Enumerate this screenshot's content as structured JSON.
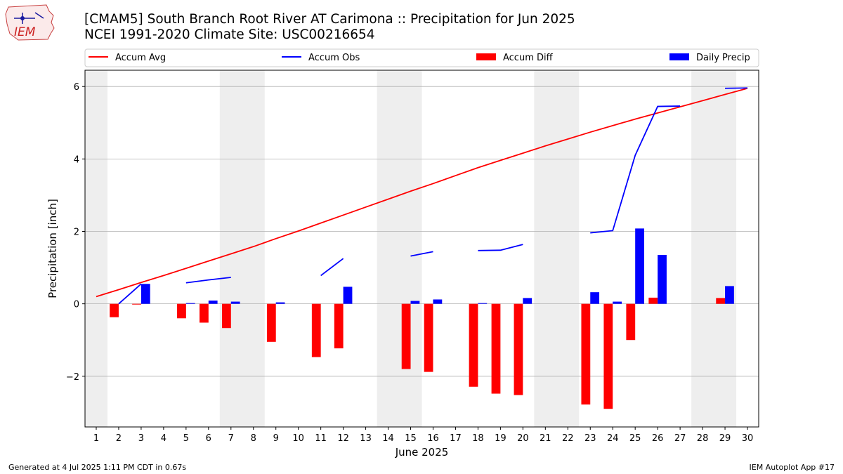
{
  "title_line1": "[CMAM5] South Branch Root River  AT Carimona :: Precipitation for Jun 2025",
  "title_line2": "NCEI 1991-2020 Climate Site: USC00216654",
  "logo_text": "IEM",
  "footer_left": "Generated at 4 Jul 2025 1:11 PM CDT in 0.67s",
  "footer_right": "IEM Autoplot App #17",
  "colors": {
    "accum_avg": "#ff0000",
    "accum_obs": "#0000ff",
    "accum_diff": "#ff0000",
    "daily_precip": "#0000ff",
    "weekend_shade": "#eeeeee",
    "grid": "#b0b0b0"
  },
  "chart_data": {
    "type": "bar",
    "xlabel": "June 2025",
    "ylabel": "Precipitation [inch]",
    "xlim": [
      0.5,
      30.5
    ],
    "ylim": [
      -3.4,
      6.45
    ],
    "yticks": [
      -2,
      0,
      2,
      4,
      6
    ],
    "ytick_labels": [
      "−2",
      "0",
      "2",
      "4",
      "6"
    ],
    "days": [
      1,
      2,
      3,
      4,
      5,
      6,
      7,
      8,
      9,
      10,
      11,
      12,
      13,
      14,
      15,
      16,
      17,
      18,
      19,
      20,
      21,
      22,
      23,
      24,
      25,
      26,
      27,
      28,
      29,
      30
    ],
    "grid": "horizontal",
    "legend_position": "top",
    "weekend_shading": [
      [
        0.5,
        1.5
      ],
      [
        6.5,
        8.5
      ],
      [
        13.5,
        15.5
      ],
      [
        20.5,
        22.5
      ],
      [
        27.5,
        29.5
      ]
    ],
    "legend": [
      "Accum Avg",
      "Accum Obs",
      "Accum Diff",
      "Daily Precip"
    ],
    "series": [
      {
        "name": "Accum Avg",
        "kind": "line",
        "values": [
          0.2,
          0.39,
          0.59,
          0.78,
          0.98,
          1.18,
          1.38,
          1.58,
          1.8,
          2.01,
          2.23,
          2.45,
          2.67,
          2.89,
          3.11,
          3.32,
          3.54,
          3.76,
          3.96,
          4.16,
          4.36,
          4.55,
          4.74,
          4.92,
          5.1,
          5.27,
          5.44,
          5.61,
          5.78,
          5.95
        ]
      },
      {
        "name": "Accum Obs",
        "kind": "line",
        "values": [
          null,
          0.0,
          0.55,
          null,
          0.58,
          0.66,
          0.73,
          null,
          null,
          null,
          0.78,
          1.25,
          null,
          null,
          1.32,
          1.44,
          null,
          1.47,
          1.48,
          1.64,
          null,
          null,
          1.96,
          2.02,
          4.1,
          5.45,
          5.46,
          null,
          5.95,
          5.96
        ]
      },
      {
        "name": "Accum Diff",
        "kind": "bar",
        "values": [
          0,
          -0.37,
          -0.02,
          0,
          -0.4,
          -0.52,
          -0.67,
          0,
          -1.05,
          0,
          -1.47,
          -1.23,
          0,
          0,
          -1.8,
          -1.88,
          0,
          -2.29,
          -2.48,
          -2.52,
          0,
          0,
          -2.78,
          -2.9,
          -1.0,
          0.17,
          0,
          0,
          0.16,
          0
        ]
      },
      {
        "name": "Daily Precip",
        "kind": "bar",
        "values": [
          0,
          0,
          0.55,
          0,
          0.02,
          0.09,
          0.06,
          0,
          0.04,
          0,
          0,
          0.47,
          0,
          0,
          0.08,
          0.12,
          0,
          0.02,
          0,
          0.16,
          0,
          0,
          0.32,
          0.06,
          2.08,
          1.35,
          0,
          0,
          0.49,
          0
        ]
      }
    ]
  }
}
